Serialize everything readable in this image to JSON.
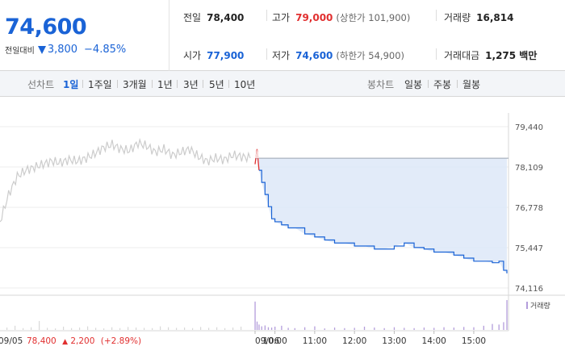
{
  "quote": {
    "current_price": "74,600",
    "change_label": "전일대비",
    "change_value": "3,800",
    "change_rate": "−4.85%",
    "prev_close_label": "전일",
    "prev_close": "78,400",
    "high_label": "고가",
    "high": "79,000",
    "upper_limit": "(상한가 101,900)",
    "volume_label": "거래량",
    "volume": "16,814",
    "open_label": "시가",
    "open": "77,900",
    "low_label": "저가",
    "low": "74,600",
    "lower_limit": "(하한가 54,900)",
    "value_label": "거래대금",
    "value": "1,275 백만"
  },
  "tabs": {
    "line_label": "선차트",
    "line_tabs": [
      "1일",
      "1주일",
      "3개월",
      "1년",
      "3년",
      "5년",
      "10년"
    ],
    "active": "1일",
    "candle_label": "봉차트",
    "candle_tabs": [
      "일봉",
      "주봉",
      "월봉"
    ]
  },
  "colors": {
    "down": "#1a63d6",
    "up": "#e12f2f",
    "prev_series": "#cccccc",
    "fill": "#dde8f8",
    "volume": "#b39ddb"
  },
  "chart_data": {
    "type": "line",
    "y_ticks": [
      "79,440",
      "78,109",
      "76,778",
      "75,447",
      "74,116"
    ],
    "ylim": [
      74116,
      79440
    ],
    "prev_close_line": 78400,
    "prev_day_label": "09/05",
    "prev_day_summary": {
      "close": "78,400",
      "arrow": "▲",
      "change": "2,200",
      "rate": "(+2.89%)"
    },
    "x_labels": [
      "09/06",
      "10:00",
      "11:00",
      "12:00",
      "13:00",
      "14:00",
      "15:00"
    ],
    "volume_legend": "거래량",
    "prev_day_series": {
      "name": "09/05",
      "values": [
        76300,
        77200,
        77800,
        78000,
        78100,
        78200,
        78300,
        78250,
        78350,
        78300,
        78400,
        78550,
        78750,
        78850,
        78700,
        78650,
        78900,
        78800,
        78600,
        78700,
        78500,
        78600,
        78700,
        78450,
        78300,
        78400,
        78350,
        78500,
        78450,
        78400
      ]
    },
    "today_series": {
      "name": "09/06",
      "x_minutes": [
        0,
        3,
        6,
        10,
        15,
        20,
        25,
        30,
        40,
        50,
        60,
        75,
        90,
        105,
        120,
        135,
        150,
        165,
        180,
        195,
        210,
        225,
        240,
        255,
        270,
        285,
        300,
        315,
        330,
        345,
        358,
        368,
        375,
        380
      ],
      "values": [
        78200,
        78700,
        78000,
        77600,
        77200,
        76800,
        76400,
        76300,
        76200,
        76100,
        76100,
        75900,
        75800,
        75700,
        75600,
        75600,
        75500,
        75500,
        75400,
        75400,
        75500,
        75600,
        75450,
        75400,
        75300,
        75300,
        75200,
        75100,
        75000,
        75000,
        74950,
        75000,
        74700,
        74600
      ]
    },
    "volume_today": [
      95,
      28,
      18,
      12,
      15,
      9,
      8,
      11,
      14,
      7,
      6,
      9,
      12,
      5,
      8,
      6,
      7,
      11,
      8,
      6,
      9,
      7,
      6,
      8,
      7,
      9,
      8,
      10,
      9,
      14,
      20,
      18,
      26,
      100
    ],
    "volume_prev": [
      8,
      14,
      6,
      9,
      30,
      7,
      5,
      11,
      6,
      8,
      12,
      7,
      5,
      9,
      6,
      10,
      8,
      7,
      6,
      12,
      9,
      7,
      8,
      6,
      10,
      7,
      9,
      6,
      8,
      11
    ]
  }
}
